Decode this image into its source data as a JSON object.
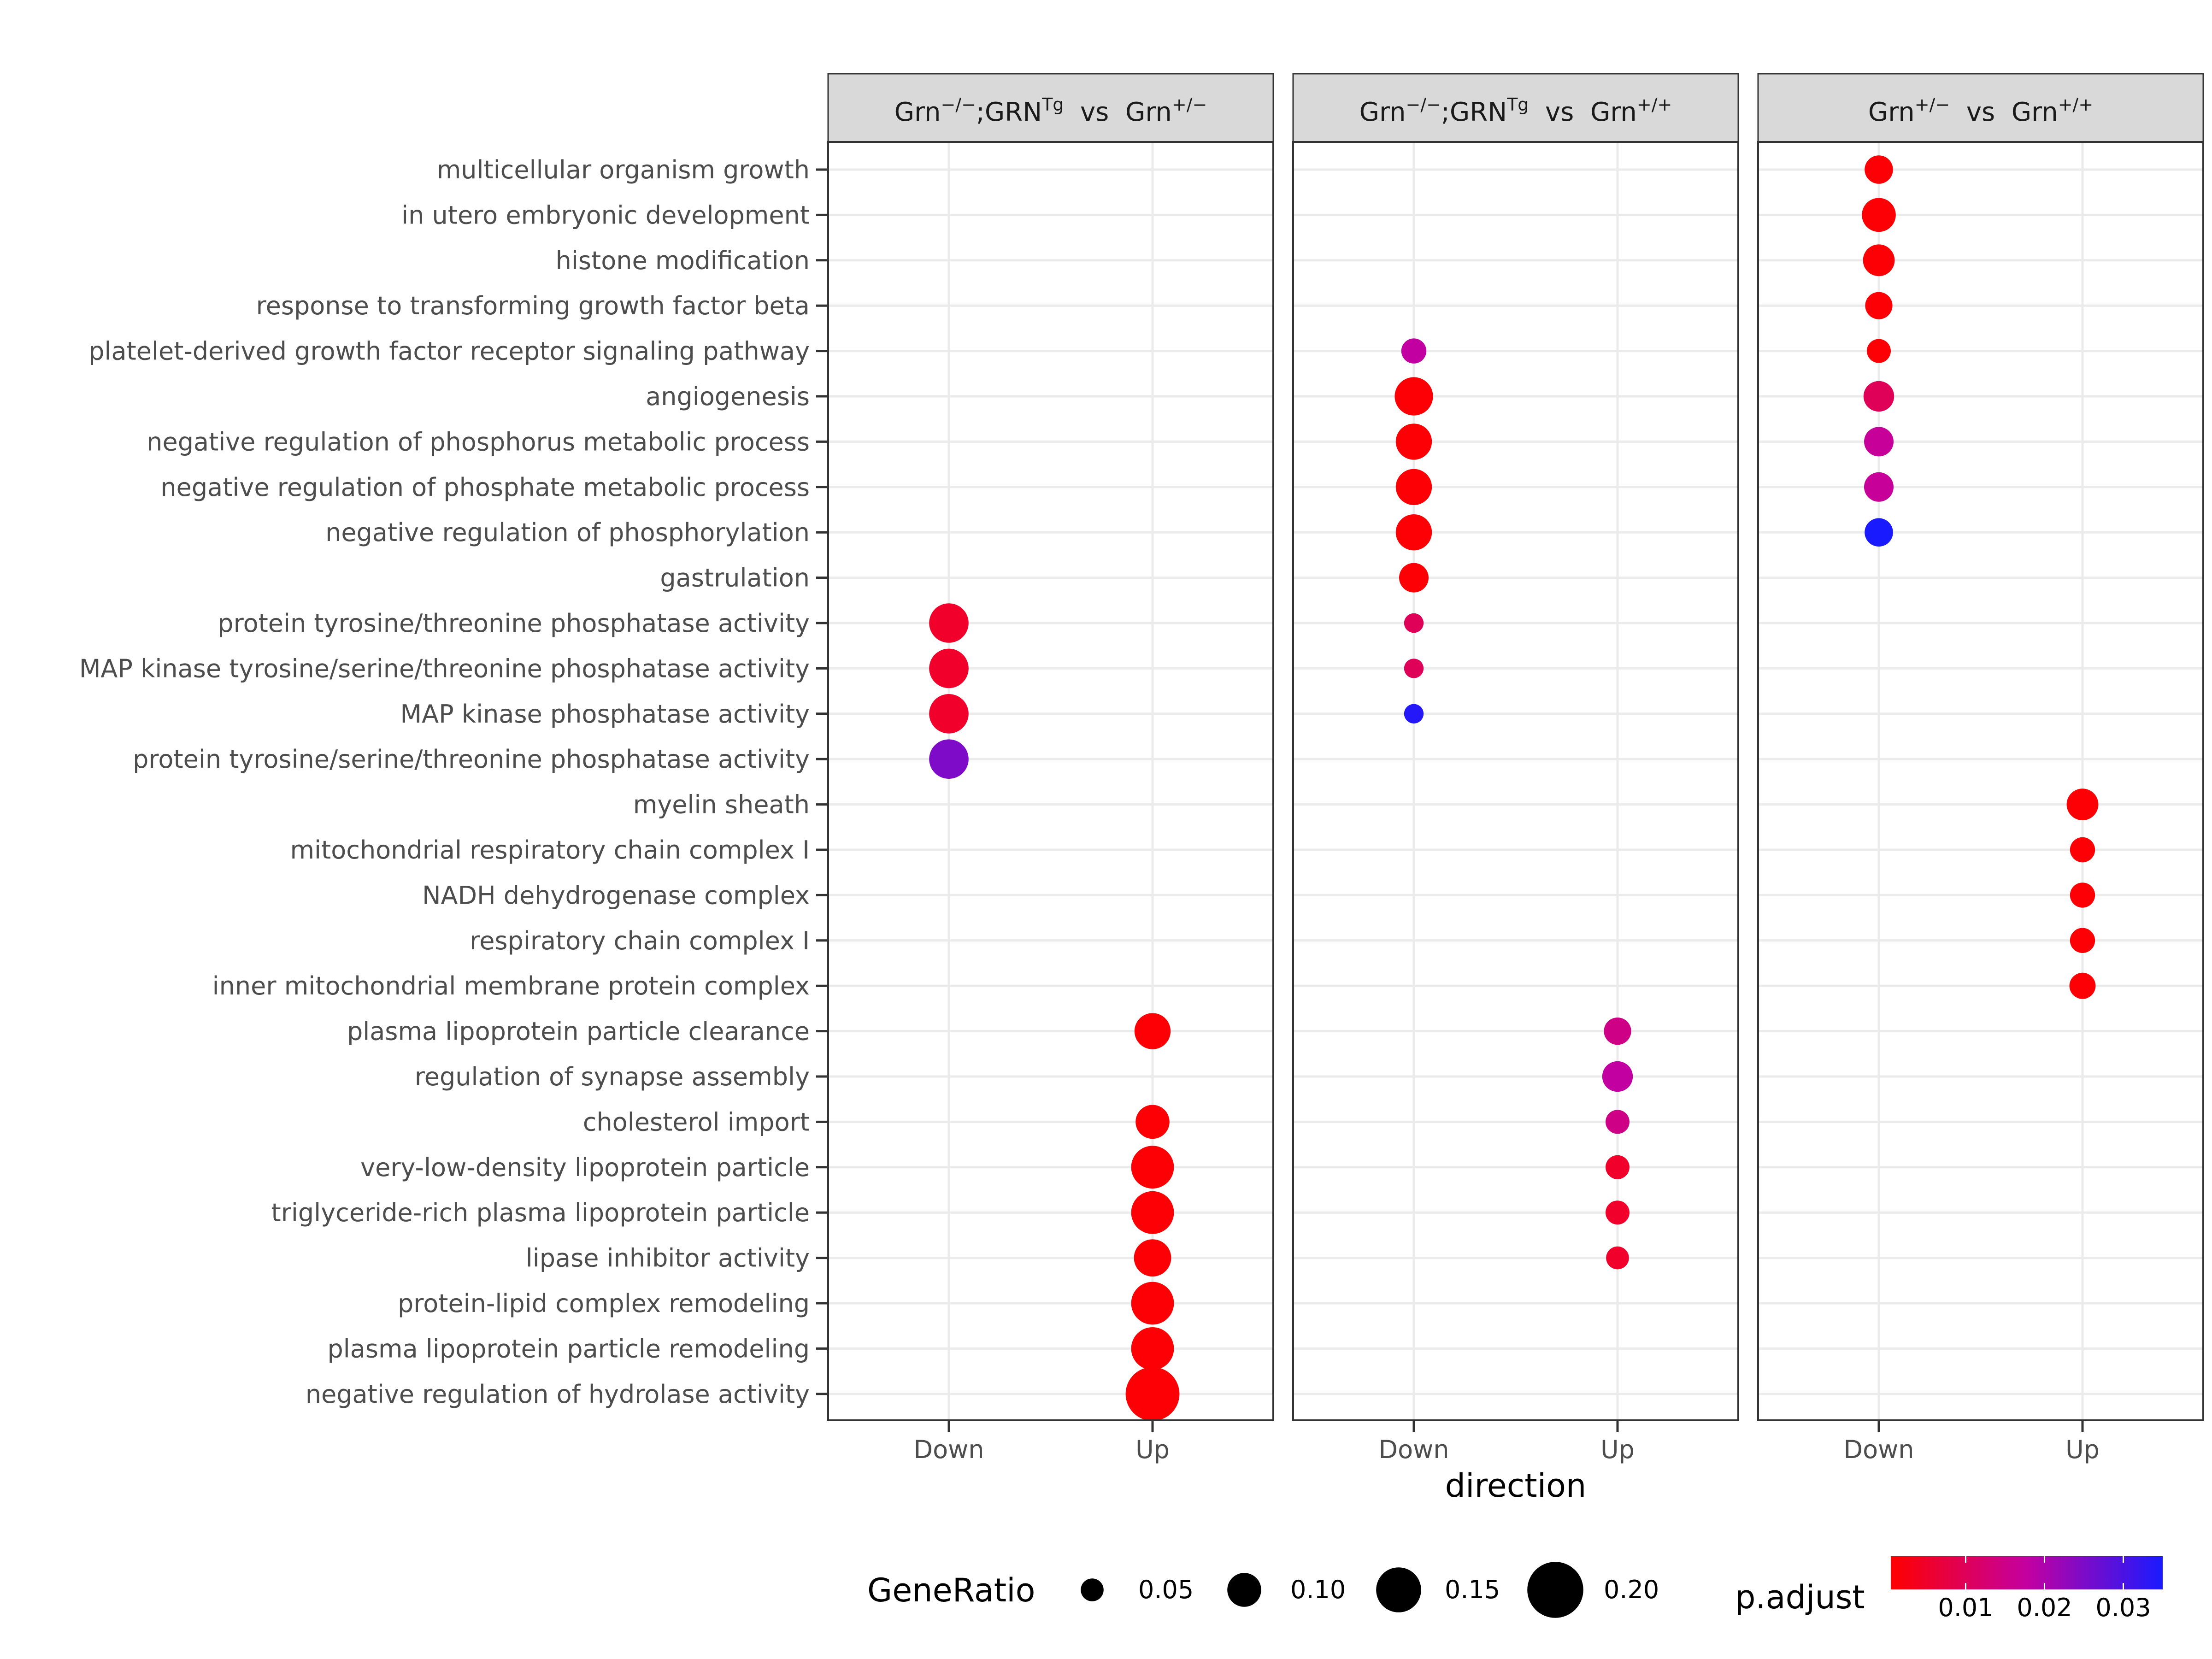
{
  "chart_data": {
    "type": "scatter",
    "xlabel": "direction",
    "x_categories": [
      "Down",
      "Up"
    ],
    "y_categories": [
      "multicellular organism growth",
      "in utero embryonic development",
      "histone modification",
      "response to transforming growth factor beta",
      "platelet-derived growth factor receptor signaling pathway",
      "angiogenesis",
      "negative regulation of phosphorus metabolic process",
      "negative regulation of phosphate metabolic process",
      "negative regulation of phosphorylation",
      "gastrulation",
      "protein tyrosine/threonine phosphatase activity",
      "MAP kinase tyrosine/serine/threonine phosphatase activity",
      "MAP kinase phosphatase activity",
      "protein tyrosine/serine/threonine phosphatase activity",
      "myelin sheath",
      "mitochondrial respiratory chain complex I",
      "NADH dehydrogenase complex",
      "respiratory chain complex I",
      "inner mitochondrial membrane protein complex",
      "plasma lipoprotein particle clearance",
      "regulation of synapse assembly",
      "cholesterol import",
      "very-low-density lipoprotein particle",
      "triglyceride-rich plasma lipoprotein particle",
      "lipase inhibitor activity",
      "protein-lipid complex remodeling",
      "plasma lipoprotein particle remodeling",
      "negative regulation of hydrolase activity"
    ],
    "panels": [
      {
        "title_parts": [
          {
            "t": "Grn"
          },
          {
            "t": "−/−",
            "sup": true
          },
          {
            "t": ";GRN"
          },
          {
            "t": "Tg",
            "sup": true
          },
          {
            "t": "  vs  Grn"
          },
          {
            "t": "+/−",
            "sup": true
          }
        ],
        "points": [
          {
            "term": "protein tyrosine/threonine phosphatase activity",
            "direction": "Down",
            "gene_ratio": 0.125,
            "p_adjust": 0.005
          },
          {
            "term": "MAP kinase tyrosine/serine/threonine phosphatase activity",
            "direction": "Down",
            "gene_ratio": 0.125,
            "p_adjust": 0.005
          },
          {
            "term": "MAP kinase phosphatase activity",
            "direction": "Down",
            "gene_ratio": 0.125,
            "p_adjust": 0.005
          },
          {
            "term": "protein tyrosine/serine/threonine phosphatase activity",
            "direction": "Down",
            "gene_ratio": 0.125,
            "p_adjust": 0.025
          },
          {
            "term": "plasma lipoprotein particle clearance",
            "direction": "Up",
            "gene_ratio": 0.11,
            "p_adjust": 0.001
          },
          {
            "term": "cholesterol import",
            "direction": "Up",
            "gene_ratio": 0.1,
            "p_adjust": 0.001
          },
          {
            "term": "very-low-density lipoprotein particle",
            "direction": "Up",
            "gene_ratio": 0.14,
            "p_adjust": 0.001
          },
          {
            "term": "triglyceride-rich plasma lipoprotein particle",
            "direction": "Up",
            "gene_ratio": 0.14,
            "p_adjust": 0.001
          },
          {
            "term": "lipase inhibitor activity",
            "direction": "Up",
            "gene_ratio": 0.115,
            "p_adjust": 0.001
          },
          {
            "term": "protein-lipid complex remodeling",
            "direction": "Up",
            "gene_ratio": 0.14,
            "p_adjust": 0.001
          },
          {
            "term": "plasma lipoprotein particle remodeling",
            "direction": "Up",
            "gene_ratio": 0.14,
            "p_adjust": 0.001
          },
          {
            "term": "negative regulation of hydrolase activity",
            "direction": "Up",
            "gene_ratio": 0.19,
            "p_adjust": 0.001
          }
        ]
      },
      {
        "title_parts": [
          {
            "t": "Grn"
          },
          {
            "t": "−/−",
            "sup": true
          },
          {
            "t": ";GRN"
          },
          {
            "t": "Tg",
            "sup": true
          },
          {
            "t": "  vs  Grn"
          },
          {
            "t": "+/+",
            "sup": true
          }
        ],
        "points": [
          {
            "term": "platelet-derived growth factor receptor signaling pathway",
            "direction": "Down",
            "gene_ratio": 0.06,
            "p_adjust": 0.018
          },
          {
            "term": "angiogenesis",
            "direction": "Down",
            "gene_ratio": 0.12,
            "p_adjust": 0.001
          },
          {
            "term": "negative regulation of phosphorus metabolic process",
            "direction": "Down",
            "gene_ratio": 0.11,
            "p_adjust": 0.001
          },
          {
            "term": "negative regulation of phosphate metabolic process",
            "direction": "Down",
            "gene_ratio": 0.11,
            "p_adjust": 0.001
          },
          {
            "term": "negative regulation of phosphorylation",
            "direction": "Down",
            "gene_ratio": 0.11,
            "p_adjust": 0.001
          },
          {
            "term": "gastrulation",
            "direction": "Down",
            "gene_ratio": 0.08,
            "p_adjust": 0.001
          },
          {
            "term": "protein tyrosine/threonine phosphatase activity",
            "direction": "Down",
            "gene_ratio": 0.035,
            "p_adjust": 0.01
          },
          {
            "term": "MAP kinase tyrosine/serine/threonine phosphatase activity",
            "direction": "Down",
            "gene_ratio": 0.035,
            "p_adjust": 0.01
          },
          {
            "term": "MAP kinase phosphatase activity",
            "direction": "Down",
            "gene_ratio": 0.035,
            "p_adjust": 0.034
          },
          {
            "term": "plasma lipoprotein particle clearance",
            "direction": "Up",
            "gene_ratio": 0.07,
            "p_adjust": 0.015
          },
          {
            "term": "regulation of synapse assembly",
            "direction": "Up",
            "gene_ratio": 0.085,
            "p_adjust": 0.018
          },
          {
            "term": "cholesterol import",
            "direction": "Up",
            "gene_ratio": 0.055,
            "p_adjust": 0.015
          },
          {
            "term": "very-low-density lipoprotein particle",
            "direction": "Up",
            "gene_ratio": 0.055,
            "p_adjust": 0.005
          },
          {
            "term": "triglyceride-rich plasma lipoprotein particle",
            "direction": "Up",
            "gene_ratio": 0.055,
            "p_adjust": 0.005
          },
          {
            "term": "lipase inhibitor activity",
            "direction": "Up",
            "gene_ratio": 0.05,
            "p_adjust": 0.005
          }
        ]
      },
      {
        "title_parts": [
          {
            "t": "Grn"
          },
          {
            "t": "+/−",
            "sup": true
          },
          {
            "t": "  vs  Grn"
          },
          {
            "t": "+/+",
            "sup": true
          }
        ],
        "points": [
          {
            "term": "multicellular organism growth",
            "direction": "Down",
            "gene_ratio": 0.075,
            "p_adjust": 0.001
          },
          {
            "term": "in utero embryonic development",
            "direction": "Down",
            "gene_ratio": 0.1,
            "p_adjust": 0.001
          },
          {
            "term": "histone modification",
            "direction": "Down",
            "gene_ratio": 0.09,
            "p_adjust": 0.001
          },
          {
            "term": "response to transforming growth factor beta",
            "direction": "Down",
            "gene_ratio": 0.07,
            "p_adjust": 0.001
          },
          {
            "term": "platelet-derived growth factor receptor signaling pathway",
            "direction": "Down",
            "gene_ratio": 0.055,
            "p_adjust": 0.001
          },
          {
            "term": "angiogenesis",
            "direction": "Down",
            "gene_ratio": 0.085,
            "p_adjust": 0.01
          },
          {
            "term": "negative regulation of phosphorus metabolic process",
            "direction": "Down",
            "gene_ratio": 0.08,
            "p_adjust": 0.017
          },
          {
            "term": "negative regulation of phosphate metabolic process",
            "direction": "Down",
            "gene_ratio": 0.08,
            "p_adjust": 0.017
          },
          {
            "term": "negative regulation of phosphorylation",
            "direction": "Down",
            "gene_ratio": 0.075,
            "p_adjust": 0.035
          },
          {
            "term": "myelin sheath",
            "direction": "Up",
            "gene_ratio": 0.09,
            "p_adjust": 0.001
          },
          {
            "term": "mitochondrial respiratory chain complex I",
            "direction": "Up",
            "gene_ratio": 0.06,
            "p_adjust": 0.001
          },
          {
            "term": "NADH dehydrogenase complex",
            "direction": "Up",
            "gene_ratio": 0.06,
            "p_adjust": 0.001
          },
          {
            "term": "respiratory chain complex I",
            "direction": "Up",
            "gene_ratio": 0.06,
            "p_adjust": 0.001
          },
          {
            "term": "inner mitochondrial membrane protein complex",
            "direction": "Up",
            "gene_ratio": 0.065,
            "p_adjust": 0.001
          }
        ]
      }
    ],
    "size_legend": {
      "title": "GeneRatio",
      "values": [
        0.05,
        0.1,
        0.15,
        0.2
      ],
      "labels": [
        "0.05",
        "0.10",
        "0.15",
        "0.20"
      ]
    },
    "color_legend": {
      "title": "p.adjust",
      "low_color": "#ff0000",
      "mid_color": "#c400a0",
      "high_color": "#1a1aff",
      "range": [
        0.0005,
        0.035
      ],
      "ticks": [
        0.01,
        0.02,
        0.03
      ],
      "tick_labels": [
        "0.01",
        "0.02",
        "0.03"
      ],
      "orientation": "horizontal"
    },
    "grid": true,
    "legend_position": "bottom"
  }
}
